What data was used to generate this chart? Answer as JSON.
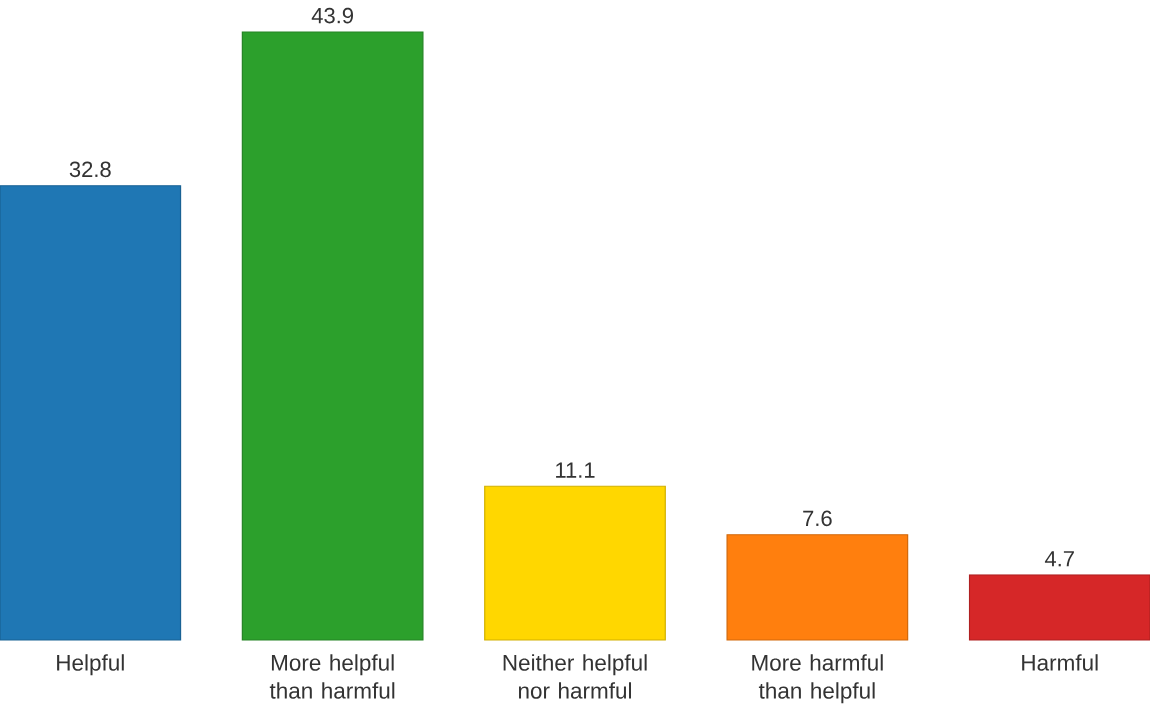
{
  "chart_data": {
    "type": "bar",
    "categories": [
      "Helpful",
      "More helpful than harmful",
      "Neither helpful nor harmful",
      "More harmful than helpful",
      "Harmful"
    ],
    "values": [
      32.8,
      43.9,
      11.1,
      7.6,
      4.7
    ],
    "colors": [
      "#1f77b4",
      "#2ca02c",
      "#ffd700",
      "#ff7f0e",
      "#d62728"
    ],
    "data_labels": true
  }
}
